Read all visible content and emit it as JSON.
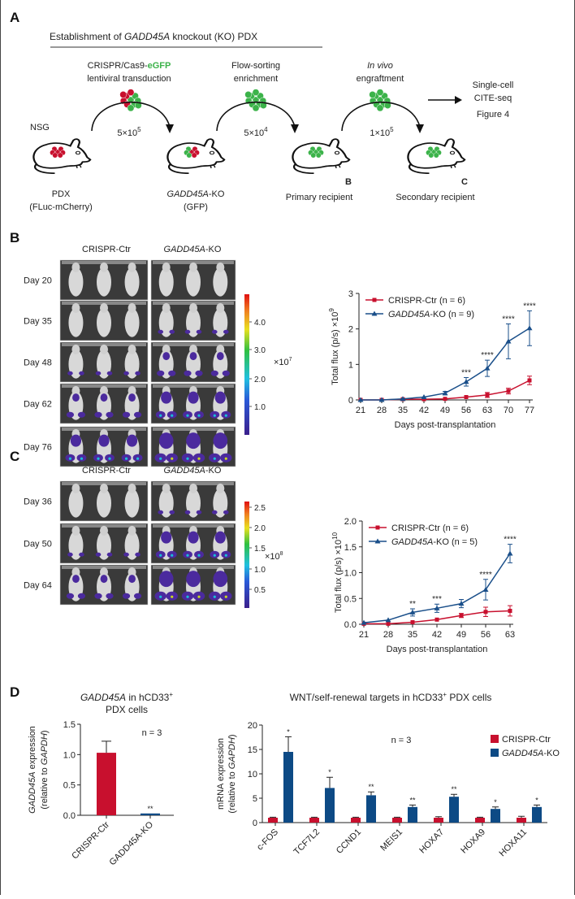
{
  "panel_labels": {
    "a": "A",
    "b": "B",
    "c": "C",
    "d": "D",
    "ref_b": "B",
    "ref_c": "C"
  },
  "schema": {
    "title_pre": "Establishment of ",
    "title_gene": "GADD45A",
    "title_post": " knockout (KO) PDX",
    "step1_line1_pre": "CRISPR/Cas9-",
    "step1_line1_em": "eGFP",
    "step1_line2": "lentiviral transduction",
    "step2_line1": "Flow-sorting",
    "step2_line2": "enrichment",
    "step3_line1": "In vivo",
    "step3_line2": "engraftment",
    "dose1_base": "5×10",
    "dose1_exp": "5",
    "dose2_base": "5×10",
    "dose2_exp": "4",
    "dose3_base": "1×10",
    "dose3_exp": "5",
    "nsg": "NSG",
    "mouse1_line1": "PDX",
    "mouse1_line2": "(FLuc-mCherry)",
    "mouse2_gene": "GADD45A",
    "mouse2_suffix": "-KO",
    "mouse2_line2": "(GFP)",
    "mouse3": "Primary recipient",
    "mouse4": "Secondary recipient",
    "next_line1": "Single-cell",
    "next_line2": "CITE-seq",
    "next_line3": "Figure 4",
    "colors": {
      "red": "#c8102e",
      "green": "#3cb34a"
    }
  },
  "imaging_b": {
    "col_ctr": "CRISPR-Ctr",
    "col_ko_gene": "GADD45A",
    "col_ko_suffix": "-KO",
    "rows": [
      "Day 20",
      "Day 35",
      "Day 48",
      "Day 62",
      "Day 76"
    ],
    "colorbar_ticks": [
      "4.0",
      "3.0",
      "2.0",
      "1.0"
    ],
    "colorbar_unit_base": "×10",
    "colorbar_unit_exp": "7"
  },
  "imaging_c": {
    "col_ctr": "CRISPR-Ctr",
    "col_ko_gene": "GADD45A",
    "col_ko_suffix": "-KO",
    "rows": [
      "Day 36",
      "Day 50",
      "Day 64"
    ],
    "colorbar_ticks": [
      "2.5",
      "2.0",
      "1.5",
      "1.0",
      "0.5"
    ],
    "colorbar_unit_base": "×10",
    "colorbar_unit_exp": "8"
  },
  "chart_data": [
    {
      "id": "flux_b",
      "type": "line",
      "ylabel_base": "Total flux (p/s) ×10",
      "ylabel_exp": "9",
      "xlabel": "Days post-transplantation",
      "x": [
        21,
        28,
        35,
        42,
        49,
        56,
        63,
        70,
        77
      ],
      "xticks": [
        "21",
        "28",
        "35",
        "42",
        "49",
        "56",
        "63",
        "70",
        "77"
      ],
      "yticks": [
        "0",
        "1",
        "2",
        "3"
      ],
      "ylim": [
        0,
        3
      ],
      "series": [
        {
          "name": "CRISPR-Ctr (n = 6)",
          "name_gene": "",
          "color": "#c8102e",
          "marker": "square",
          "values": [
            0.0,
            0.0,
            0.02,
            0.02,
            0.03,
            0.08,
            0.14,
            0.25,
            0.55
          ],
          "err": [
            0.01,
            0.01,
            0.01,
            0.01,
            0.01,
            0.02,
            0.07,
            0.08,
            0.12
          ]
        },
        {
          "name": "-KO (n = 9)",
          "name_gene": "GADD45A",
          "color": "#1a4f8a",
          "marker": "triangle",
          "values": [
            0.0,
            0.0,
            0.03,
            0.08,
            0.19,
            0.51,
            0.89,
            1.65,
            2.02
          ],
          "err": [
            0.01,
            0.01,
            0.01,
            0.02,
            0.05,
            0.12,
            0.23,
            0.49,
            0.49
          ]
        }
      ],
      "annotations": [
        {
          "x": 56,
          "text": "***"
        },
        {
          "x": 63,
          "text": "****"
        },
        {
          "x": 70,
          "text": "****"
        },
        {
          "x": 77,
          "text": "****"
        }
      ],
      "legend": "top-left"
    },
    {
      "id": "flux_c",
      "type": "line",
      "ylabel_base": "Total flux (p/s) ×10",
      "ylabel_exp": "10",
      "xlabel": "Days post-transplantation",
      "x": [
        21,
        28,
        35,
        42,
        49,
        56,
        63
      ],
      "xticks": [
        "21",
        "28",
        "35",
        "42",
        "49",
        "56",
        "63"
      ],
      "yticks": [
        "0.0",
        "0.5",
        "1.0",
        "1.5",
        "2.0"
      ],
      "ylim": [
        0,
        2
      ],
      "series": [
        {
          "name": "CRISPR-Ctr (n = 6)",
          "name_gene": "",
          "color": "#c8102e",
          "marker": "square",
          "values": [
            0.01,
            0.01,
            0.04,
            0.09,
            0.17,
            0.24,
            0.26
          ],
          "err": [
            0.01,
            0.01,
            0.01,
            0.01,
            0.04,
            0.09,
            0.1
          ]
        },
        {
          "name": "-KO (n = 5)",
          "name_gene": "GADD45A",
          "color": "#1a4f8a",
          "marker": "triangle",
          "values": [
            0.03,
            0.08,
            0.23,
            0.31,
            0.4,
            0.67,
            1.37
          ],
          "err": [
            0.01,
            0.01,
            0.07,
            0.08,
            0.08,
            0.2,
            0.18
          ]
        }
      ],
      "annotations": [
        {
          "x": 35,
          "text": "**"
        },
        {
          "x": 42,
          "text": "***"
        },
        {
          "x": 56,
          "text": "****"
        },
        {
          "x": 63,
          "text": "****"
        }
      ],
      "legend": "top-left"
    },
    {
      "id": "gadd45a_expr",
      "type": "bar",
      "title_gene": "GADD45A",
      "title_post": " in hCD33",
      "title_sup": "+",
      "title_line2": "PDX cells",
      "ylabel_gene": "GADD45A",
      "ylabel_post": " expression",
      "ylabel2_pre": "(relative to ",
      "ylabel2_gene": "GAPDH",
      "ylabel2_post": ")",
      "categories": [
        "CRISPR-Ctr",
        "GADD45A-KO"
      ],
      "values": [
        1.03,
        0.03
      ],
      "err": [
        0.19,
        0.01
      ],
      "colors": [
        "#c8102e",
        "#0d4a85"
      ],
      "yticks": [
        "0.0",
        "0.5",
        "1.0",
        "1.5"
      ],
      "ylim": [
        0,
        1.5
      ],
      "annotations": [
        "",
        "**"
      ],
      "note": "n = 3"
    },
    {
      "id": "wnt_targets",
      "type": "bar",
      "title_pre": "WNT/self-renewal targets in hCD33",
      "title_sup": "+",
      "title_post": " PDX cells",
      "ylabel": "mRNA expression",
      "ylabel2_pre": "(relative to ",
      "ylabel2_gene": "GAPDH",
      "ylabel2_post": ")",
      "categories": [
        "c-FOS",
        "TCF7L2",
        "CCND1",
        "MEIS1",
        "HOXA7",
        "HOXA9",
        "HOXA11"
      ],
      "series": [
        {
          "name": "CRISPR-Ctr",
          "name_gene": "",
          "color": "#c8102e",
          "values": [
            1.0,
            1.0,
            1.0,
            1.0,
            1.0,
            1.0,
            1.0
          ],
          "err": [
            0.1,
            0.1,
            0.1,
            0.1,
            0.2,
            0.1,
            0.3
          ]
        },
        {
          "name": "-KO",
          "name_gene": "GADD45A",
          "color": "#0d4a85",
          "values": [
            14.5,
            7.1,
            5.6,
            3.2,
            5.3,
            2.8,
            3.2
          ],
          "err": [
            3.1,
            2.2,
            0.7,
            0.4,
            0.5,
            0.4,
            0.4
          ]
        }
      ],
      "yticks": [
        "0",
        "5",
        "10",
        "15",
        "20"
      ],
      "ylim": [
        0,
        20
      ],
      "annotations": [
        "*",
        "*",
        "**",
        "**",
        "**",
        "*",
        "*"
      ],
      "note": "n = 3",
      "legend": "top-right"
    }
  ]
}
